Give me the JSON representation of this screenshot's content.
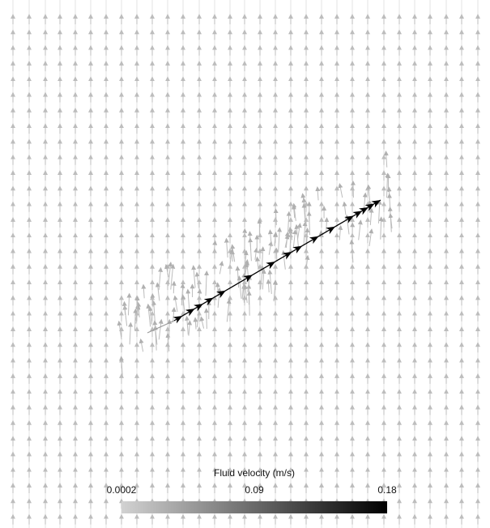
{
  "colorbar": {
    "title": "Fluid velocity (m/s)",
    "min_label": "0.0002",
    "mid_label": "0.09",
    "max_label": "0.18",
    "min": 0.0002,
    "max": 0.18,
    "color_low": "#d2d2d2",
    "color_high": "#000000"
  },
  "colors": {
    "background": "#ffffff",
    "background_arrow": "#c4c4c4",
    "streamline": "#000000"
  }
}
